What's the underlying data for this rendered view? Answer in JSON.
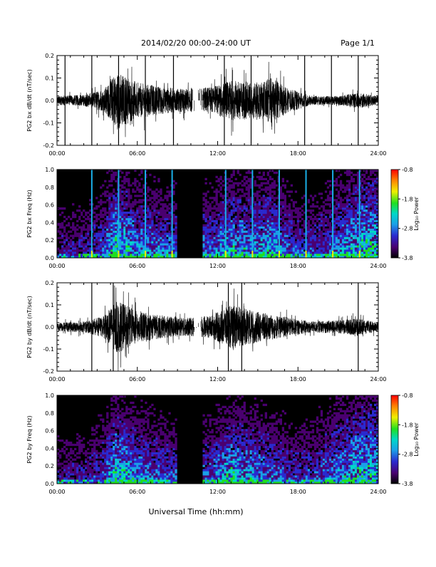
{
  "header": {
    "title": "2014/02/20  00:00–24:00 UT",
    "page": "Page 1/1"
  },
  "footer": {
    "xlabel": "Universal Time (hh:mm)"
  },
  "colors": {
    "trace": "#000000",
    "colorbar": [
      "#000000",
      "#4a0070",
      "#2a2ad0",
      "#1aa0e8",
      "#00d8c8",
      "#20e020",
      "#f0f000",
      "#ff8000",
      "#ff0000"
    ]
  },
  "chart_data": [
    {
      "type": "line",
      "ylabel": "PG2 bx dB/dt (nT/sec)",
      "xlim": [
        0,
        24
      ],
      "ylim": [
        -0.2,
        0.2
      ],
      "x_ticks": [
        "00:00",
        "06:00",
        "12:00",
        "18:00",
        "24:00"
      ],
      "y_ticks": [
        "-0.2",
        "-0.1",
        "0.0",
        "0.1",
        "0.2"
      ],
      "data_gap_hours": [
        10.1,
        10.9
      ],
      "spikes_hours": [
        0.6,
        2.6,
        4.6,
        6.6,
        8.7,
        12.5,
        14.5,
        18.5,
        20.5,
        22.5
      ],
      "activity_envelope": [
        {
          "hour": 0,
          "amp": 0.02
        },
        {
          "hour": 2,
          "amp": 0.025
        },
        {
          "hour": 3.5,
          "amp": 0.05
        },
        {
          "hour": 4.5,
          "amp": 0.13
        },
        {
          "hour": 6,
          "amp": 0.08
        },
        {
          "hour": 8,
          "amp": 0.06
        },
        {
          "hour": 9.5,
          "amp": 0.05
        },
        {
          "hour": 11.5,
          "amp": 0.06
        },
        {
          "hour": 13,
          "amp": 0.09
        },
        {
          "hour": 15,
          "amp": 0.08
        },
        {
          "hour": 16,
          "amp": 0.1
        },
        {
          "hour": 17.5,
          "amp": 0.05
        },
        {
          "hour": 19,
          "amp": 0.02
        },
        {
          "hour": 21,
          "amp": 0.02
        },
        {
          "hour": 22.5,
          "amp": 0.035
        },
        {
          "hour": 24,
          "amp": 0.02
        }
      ]
    },
    {
      "type": "heatmap",
      "ylabel": "PG2 bx Freq (Hz)",
      "xlim": [
        0,
        24
      ],
      "ylim": [
        0,
        1.0
      ],
      "x_ticks": [
        "00:00",
        "06:00",
        "12:00",
        "18:00",
        "24:00"
      ],
      "y_ticks": [
        "0.0",
        "0.2",
        "0.4",
        "0.6",
        "0.8",
        "1.0"
      ],
      "colorbar_label": "Log₁₀ Power",
      "colorbar_ticks": [
        "-0.8",
        "-1.8",
        "-2.8",
        "-3.8"
      ],
      "colorbar_range": [
        -3.8,
        -0.8
      ],
      "data_gap_hours": [
        8.9,
        10.9
      ],
      "spikes_hours": [
        2.6,
        4.6,
        6.6,
        8.6,
        12.6,
        14.6,
        16.6,
        18.6,
        20.6,
        22.6
      ]
    },
    {
      "type": "line",
      "ylabel": "PG2 by dB/dt (nT/sec)",
      "xlim": [
        0,
        24
      ],
      "ylim": [
        -0.2,
        0.2
      ],
      "x_ticks": [
        "00:00",
        "06:00",
        "12:00",
        "18:00",
        "24:00"
      ],
      "y_ticks": [
        "-0.2",
        "-0.1",
        "0.0",
        "0.1",
        "0.2"
      ],
      "data_gap_hours": [
        10.2,
        10.8
      ],
      "spikes_hours": [
        2.6,
        4.2,
        12.8,
        13.8,
        22.5
      ],
      "activity_envelope": [
        {
          "hour": 0,
          "amp": 0.02
        },
        {
          "hour": 2,
          "amp": 0.025
        },
        {
          "hour": 3.5,
          "amp": 0.05
        },
        {
          "hour": 4.5,
          "amp": 0.12
        },
        {
          "hour": 6,
          "amp": 0.07
        },
        {
          "hour": 8,
          "amp": 0.05
        },
        {
          "hour": 9.5,
          "amp": 0.04
        },
        {
          "hour": 11.5,
          "amp": 0.05
        },
        {
          "hour": 13,
          "amp": 0.1
        },
        {
          "hour": 15,
          "amp": 0.07
        },
        {
          "hour": 16,
          "amp": 0.06
        },
        {
          "hour": 17.5,
          "amp": 0.04
        },
        {
          "hour": 19,
          "amp": 0.025
        },
        {
          "hour": 21,
          "amp": 0.03
        },
        {
          "hour": 22.5,
          "amp": 0.04
        },
        {
          "hour": 24,
          "amp": 0.02
        }
      ]
    },
    {
      "type": "heatmap",
      "ylabel": "PG2 by Freq (Hz)",
      "xlim": [
        0,
        24
      ],
      "ylim": [
        0,
        1.0
      ],
      "x_ticks": [
        "00:00",
        "06:00",
        "12:00",
        "18:00",
        "24:00"
      ],
      "y_ticks": [
        "0.0",
        "0.2",
        "0.4",
        "0.6",
        "0.8",
        "1.0"
      ],
      "colorbar_label": "Log₁₀ Power",
      "colorbar_ticks": [
        "-0.8",
        "-1.8",
        "-2.8",
        "-3.8"
      ],
      "colorbar_range": [
        -3.8,
        -0.8
      ],
      "data_gap_hours": [
        8.9,
        10.9
      ],
      "spikes_hours": []
    }
  ]
}
